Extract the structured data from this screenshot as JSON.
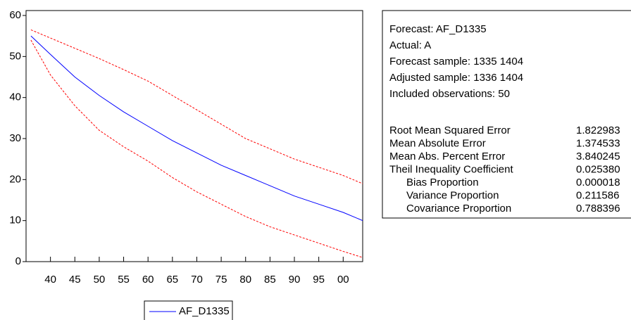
{
  "chart_data": {
    "type": "line",
    "x": [
      1336,
      1340,
      1345,
      1350,
      1355,
      1360,
      1365,
      1370,
      1375,
      1380,
      1385,
      1390,
      1395,
      1400,
      1404
    ],
    "series": [
      {
        "name": "AF_D1335",
        "color": "#0000ff",
        "values": [
          55,
          50.5,
          45,
          40.5,
          36.5,
          33,
          29.5,
          26.5,
          23.5,
          21,
          18.5,
          16,
          14,
          12,
          10
        ]
      },
      {
        "color": "#ff0000",
        "dashed": true,
        "values": [
          56.5,
          54.5,
          52,
          49.5,
          46.8,
          44,
          40.5,
          37,
          33.5,
          30,
          27.5,
          25,
          23,
          21,
          19
        ]
      },
      {
        "color": "#ff0000",
        "dashed": true,
        "values": [
          54,
          45.5,
          38,
          32,
          28,
          24.5,
          20.5,
          17,
          14,
          11,
          8.5,
          6.5,
          4.5,
          2.5,
          1
        ]
      }
    ],
    "xlim": [
      1335,
      1404
    ],
    "xticks": [
      {
        "value": 1340,
        "label": "40"
      },
      {
        "value": 1345,
        "label": "45"
      },
      {
        "value": 1350,
        "label": "50"
      },
      {
        "value": 1355,
        "label": "55"
      },
      {
        "value": 1360,
        "label": "60"
      },
      {
        "value": 1365,
        "label": "65"
      },
      {
        "value": 1370,
        "label": "70"
      },
      {
        "value": 1375,
        "label": "75"
      },
      {
        "value": 1380,
        "label": "80"
      },
      {
        "value": 1385,
        "label": "85"
      },
      {
        "value": 1390,
        "label": "90"
      },
      {
        "value": 1395,
        "label": "95"
      },
      {
        "value": 1400,
        "label": "00"
      }
    ],
    "ylim": [
      0,
      60
    ],
    "yticks": [
      0,
      10,
      20,
      30,
      40,
      50,
      60
    ],
    "legend": "bottom"
  },
  "stats": {
    "lines": [
      "Forecast: AF_D1335",
      "Actual: A",
      "Forecast sample: 1335 1404",
      "Adjusted sample: 1336 1404",
      "Included observations: 50"
    ],
    "rows": [
      [
        "Root Mean Squared Error",
        "1.822983"
      ],
      [
        "Mean Absolute Error",
        "1.374533"
      ],
      [
        "Mean Abs. Percent Error",
        "3.840245"
      ],
      [
        "Theil Inequality Coefficient",
        "0.025380"
      ],
      [
        "Bias Proportion",
        "0.000018"
      ],
      [
        "Variance Proportion",
        "0.211586"
      ],
      [
        "Covariance Proportion",
        "0.788396"
      ]
    ]
  }
}
